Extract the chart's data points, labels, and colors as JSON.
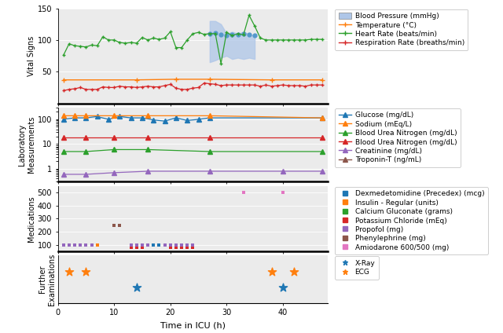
{
  "xlim": [
    0,
    48
  ],
  "xticks": [
    0,
    10,
    20,
    30,
    40
  ],
  "xlabel": "Time in ICU (h)",
  "vital_signs": {
    "heart_rate": {
      "x": [
        1,
        2,
        3,
        4,
        5,
        6,
        7,
        8,
        9,
        10,
        11,
        12,
        13,
        14,
        15,
        16,
        17,
        18,
        19,
        20,
        21,
        22,
        23,
        24,
        25,
        26,
        27,
        28,
        29,
        30,
        31,
        32,
        33,
        34,
        35,
        36,
        37,
        38,
        39,
        40,
        41,
        42,
        43,
        44,
        45,
        46,
        47
      ],
      "y": [
        76,
        94,
        91,
        90,
        89,
        92,
        91,
        105,
        100,
        100,
        96,
        95,
        96,
        95,
        104,
        100,
        103,
        101,
        103,
        113,
        88,
        88,
        100,
        110,
        112,
        109,
        110,
        110,
        63,
        112,
        107,
        110,
        108,
        139,
        122,
        103,
        100,
        100,
        100,
        100,
        100,
        100,
        100,
        100,
        101,
        101,
        101
      ],
      "color": "#2ca02c"
    },
    "temperature": {
      "x": [
        1,
        14,
        21,
        27,
        38,
        47
      ],
      "y": [
        37,
        37,
        38,
        38,
        37,
        37
      ],
      "color": "#ff7f0e"
    },
    "respiration_rate": {
      "x": [
        1,
        2,
        3,
        4,
        5,
        6,
        7,
        8,
        9,
        10,
        11,
        12,
        13,
        14,
        15,
        16,
        17,
        18,
        19,
        20,
        21,
        22,
        23,
        24,
        25,
        26,
        27,
        28,
        29,
        30,
        31,
        32,
        33,
        34,
        35,
        36,
        37,
        38,
        39,
        40,
        41,
        42,
        43,
        44,
        45,
        46,
        47
      ],
      "y": [
        20,
        22,
        23,
        25,
        22,
        22,
        22,
        26,
        25,
        25,
        27,
        26,
        26,
        25,
        26,
        27,
        26,
        26,
        28,
        30,
        24,
        22,
        22,
        24,
        25,
        32,
        31,
        30,
        28,
        29,
        29,
        29,
        29,
        29,
        29,
        27,
        29,
        27,
        28,
        29,
        28,
        28,
        28,
        27,
        29,
        29,
        29
      ],
      "color": "#d62728"
    },
    "bp_x": [
      27,
      28,
      29,
      30,
      31,
      32,
      33,
      34,
      35
    ],
    "bp_systolic": [
      130,
      130,
      125,
      110,
      113,
      110,
      113,
      109,
      107
    ],
    "bp_diastolic": [
      65,
      68,
      72,
      75,
      70,
      72,
      70,
      72,
      70
    ],
    "bp_dots_x": [
      27,
      28,
      29,
      30,
      31,
      32,
      33,
      34,
      35
    ],
    "bp_dots_y": [
      110,
      111,
      108,
      107,
      108,
      108,
      110,
      108,
      107
    ],
    "ylim": [
      0,
      150
    ],
    "yticks": [
      50,
      100,
      150
    ]
  },
  "lab": {
    "glucose": {
      "x": [
        1,
        3,
        5,
        7,
        9,
        11,
        13,
        15,
        17,
        19,
        21,
        23,
        25,
        27,
        47
      ],
      "y": [
        100,
        115,
        115,
        130,
        100,
        130,
        115,
        115,
        95,
        85,
        115,
        90,
        100,
        115,
        115
      ],
      "color": "#1f77b4"
    },
    "sodium": {
      "x": [
        1,
        3,
        5,
        10,
        16,
        27,
        47
      ],
      "y": [
        140,
        140,
        140,
        140,
        140,
        140,
        115
      ],
      "color": "#ff7f0e"
    },
    "bun_green": {
      "x": [
        1,
        5,
        10,
        16,
        27,
        47
      ],
      "y": [
        5,
        5,
        6,
        6,
        5,
        5
      ],
      "color": "#2ca02c"
    },
    "bun_red": {
      "x": [
        1,
        5,
        10,
        16,
        27,
        47
      ],
      "y": [
        18,
        18,
        18,
        18,
        18,
        18
      ],
      "color": "#d62728"
    },
    "creatinine": {
      "x": [
        1,
        5,
        10,
        16,
        27,
        40,
        47
      ],
      "y": [
        0.6,
        0.6,
        0.7,
        0.8,
        0.8,
        0.8,
        0.8
      ],
      "color": "#9467bd"
    },
    "troponin": {
      "x": [],
      "y": [],
      "color": "#8c564b"
    },
    "ylim": [
      0.3,
      300
    ]
  },
  "medications": {
    "dexmedetomidine": {
      "x": [
        1,
        2,
        3,
        4,
        5,
        6,
        13,
        14,
        15,
        16,
        17,
        18,
        19,
        22,
        23,
        24
      ],
      "y": [
        100,
        100,
        100,
        100,
        100,
        100,
        100,
        100,
        100,
        100,
        100,
        100,
        100,
        100,
        100,
        100
      ],
      "color": "#1f77b4"
    },
    "insulin": {
      "x": [
        1,
        2,
        3,
        4,
        5,
        6,
        7,
        13,
        14,
        15,
        16,
        19,
        20,
        21,
        22,
        23,
        24
      ],
      "y": [
        100,
        100,
        100,
        100,
        100,
        100,
        100,
        100,
        100,
        100,
        100,
        100,
        100,
        100,
        100,
        100,
        100
      ],
      "color": "#ff7f0e"
    },
    "calcium_gluconate": {
      "x": [
        4,
        5,
        14,
        15,
        20,
        21,
        22
      ],
      "y": [
        100,
        100,
        100,
        100,
        100,
        100,
        100
      ],
      "color": "#2ca02c"
    },
    "potassium_chloride": {
      "x": [
        13,
        14,
        15,
        20,
        21,
        22,
        23,
        24
      ],
      "y": [
        80,
        80,
        80,
        80,
        80,
        80,
        80,
        80
      ],
      "color": "#d62728"
    },
    "propofol": {
      "x": [
        1,
        2,
        3,
        4,
        5,
        6,
        13,
        14,
        15,
        16,
        19,
        20,
        21,
        22,
        23,
        24
      ],
      "y": [
        100,
        100,
        100,
        100,
        100,
        100,
        100,
        100,
        100,
        100,
        100,
        100,
        100,
        100,
        100,
        100
      ],
      "color": "#9467bd"
    },
    "phenylephrine": {
      "x": [
        10,
        11
      ],
      "y": [
        250,
        250
      ],
      "color": "#8c564b"
    },
    "amiodarone": {
      "x": [
        33,
        40
      ],
      "y": [
        500,
        500
      ],
      "color": "#e377c2"
    },
    "ylim": [
      50,
      550
    ],
    "yticks": [
      100,
      200,
      300,
      400,
      500
    ]
  },
  "examinations": {
    "xray": {
      "x": [
        14,
        40
      ],
      "y": [
        1,
        1
      ],
      "color": "#1f77b4"
    },
    "ecg": {
      "x": [
        2,
        5,
        38,
        42
      ],
      "y": [
        2,
        2,
        2,
        2
      ],
      "color": "#ff7f0e"
    },
    "ylim": [
      0,
      3
    ]
  },
  "legend_vital": [
    {
      "label": "Blood Pressure (mmHg)",
      "color": "#aec6e8",
      "type": "patch"
    },
    {
      "label": "Temperature (°C)",
      "color": "#ff7f0e",
      "type": "line",
      "marker": "+"
    },
    {
      "label": "Heart Rate (beats/min)",
      "color": "#2ca02c",
      "type": "line",
      "marker": "+"
    },
    {
      "label": "Respiration Rate (breaths/min)",
      "color": "#d62728",
      "type": "line",
      "marker": "+"
    }
  ],
  "legend_lab": [
    {
      "label": "Glucose (mg/dL)",
      "color": "#1f77b4",
      "type": "line",
      "marker": "^"
    },
    {
      "label": "Sodium (mEq/L)",
      "color": "#ff7f0e",
      "type": "line",
      "marker": "^"
    },
    {
      "label": "Blood Urea Nitrogen (mg/dL)",
      "color": "#2ca02c",
      "type": "line",
      "marker": "^"
    },
    {
      "label": "Blood Urea Nitrogen (mg/dL)",
      "color": "#d62728",
      "type": "line",
      "marker": "^"
    },
    {
      "label": "Creatinine (mg/dL)",
      "color": "#9467bd",
      "type": "line",
      "marker": "^"
    },
    {
      "label": "Troponin-T (ng/mL)",
      "color": "#8c564b",
      "type": "line",
      "marker": "^"
    }
  ],
  "legend_med": [
    {
      "label": "Dexmedetomidine (Precedex) (mcg)",
      "color": "#1f77b4",
      "type": "scatter",
      "marker": "s"
    },
    {
      "label": "Insulin - Regular (units)",
      "color": "#ff7f0e",
      "type": "scatter",
      "marker": "s"
    },
    {
      "label": "Calcium Gluconate (grams)",
      "color": "#2ca02c",
      "type": "scatter",
      "marker": "s"
    },
    {
      "label": "Potassium Chloride (mEq)",
      "color": "#d62728",
      "type": "scatter",
      "marker": "s"
    },
    {
      "label": "Propofol (mg)",
      "color": "#9467bd",
      "type": "scatter",
      "marker": "s"
    },
    {
      "label": "Phenylephrine (mg)",
      "color": "#8c564b",
      "type": "scatter",
      "marker": "s"
    },
    {
      "label": "Amiodarone 600/500 (mg)",
      "color": "#e377c2",
      "type": "scatter",
      "marker": "s"
    }
  ],
  "legend_exam": [
    {
      "label": "X-Ray",
      "color": "#1f77b4",
      "type": "scatter",
      "marker": "*"
    },
    {
      "label": "ECG",
      "color": "#ff7f0e",
      "type": "scatter",
      "marker": "*"
    }
  ],
  "bg_color": "#ebebeb",
  "fig_bg": "#ffffff"
}
